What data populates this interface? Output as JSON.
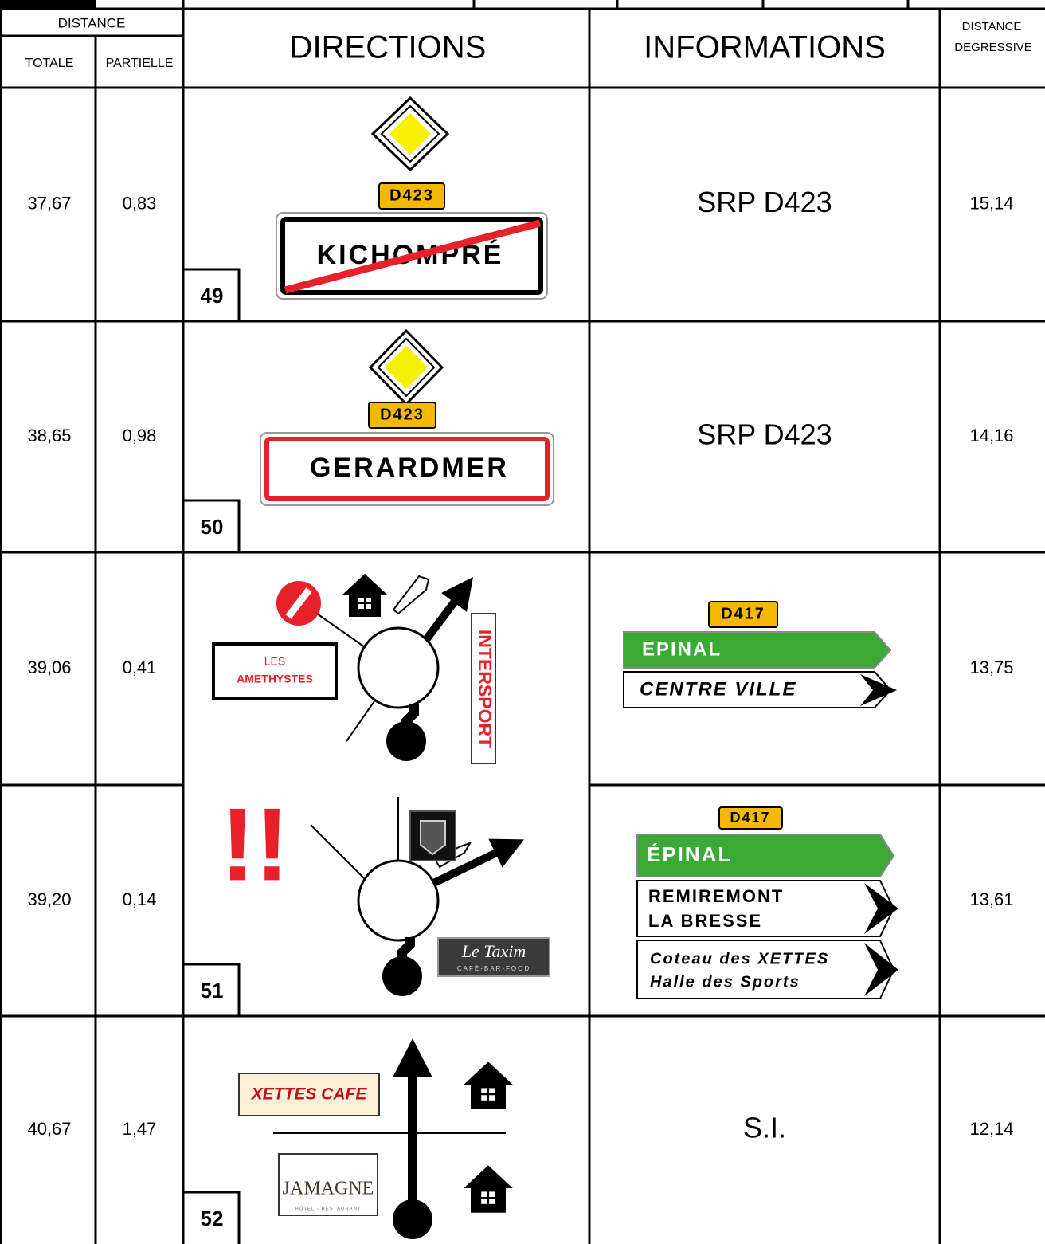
{
  "header": {
    "distance": "DISTANCE",
    "totale": "TOTALE",
    "partielle": "PARTIELLE",
    "directions": "DIRECTIONS",
    "informations": "INFORMATIONS",
    "distance_degressive": [
      "DISTANCE",
      "DEGRESSIVE"
    ]
  },
  "rows": [
    {
      "total": "37,67",
      "partial": "0,83",
      "number": "49",
      "directions": {
        "road": "D423",
        "town": "KICHOMPRÉ"
      },
      "information": "SRP D423",
      "remaining": "15,14"
    },
    {
      "total": "38,65",
      "partial": "0,98",
      "number": "50",
      "directions": {
        "road": "D423",
        "town": "GERARDMER"
      },
      "information": "SRP D423",
      "remaining": "14,16"
    },
    {
      "total": "39,06",
      "partial": "0,41",
      "directions": {
        "sign": [
          "LES",
          "AMETHYSTES"
        ],
        "brand": "INTERSPORT"
      },
      "information": {
        "road": "D417",
        "signs": [
          [
            "EPINAL"
          ],
          [
            "CENTRE VILLE"
          ]
        ]
      },
      "remaining": "13,75"
    },
    {
      "total": "39,20",
      "partial": "0,14",
      "number": "51",
      "directions": {
        "warning": "!!",
        "cafe": "Le Taxim",
        "cafe_tagline": "CAFÉ-BAR-FOOD"
      },
      "information": {
        "road": "D417",
        "signs": [
          [
            "ÉPINAL"
          ],
          [
            "REMIREMONT",
            "LA BRESSE"
          ],
          [
            "Coteau des XETTES",
            "Halle des Sports"
          ]
        ]
      },
      "remaining": "13,61"
    },
    {
      "total": "40,67",
      "partial": "1,47",
      "number": "52",
      "directions": {
        "cafe": "XETTES CAFE",
        "hotel": "JAMAGNE",
        "hotel_tagline": "HÔTEL - RESTAURANT"
      },
      "information": "S.I.",
      "remaining": "12,14"
    }
  ]
}
